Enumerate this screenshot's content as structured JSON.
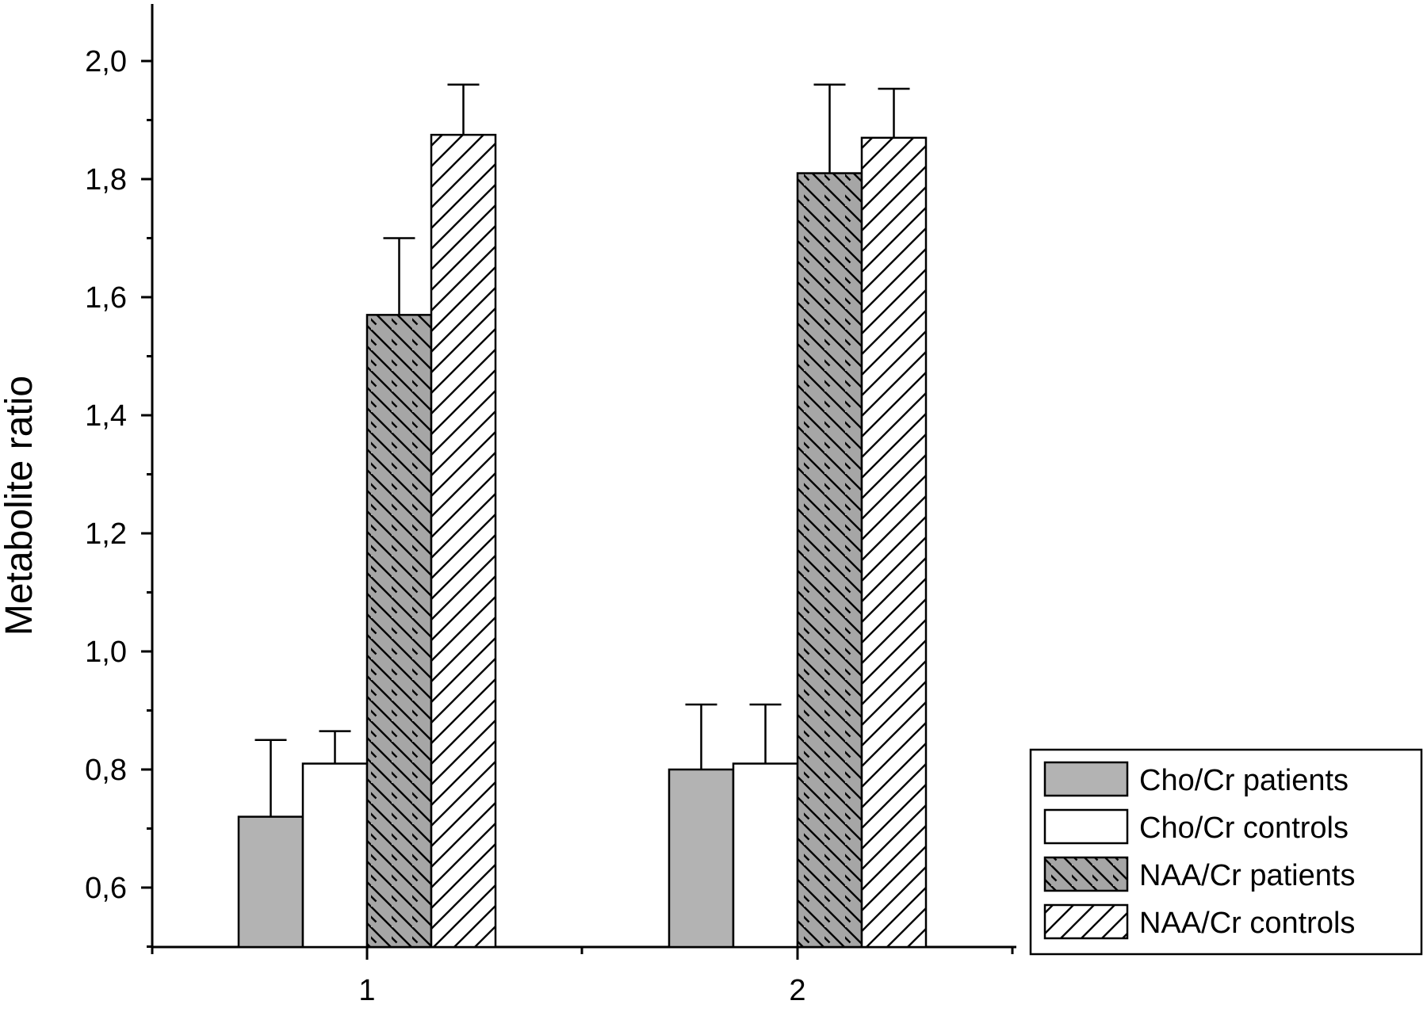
{
  "chart_data": {
    "type": "bar",
    "title": "",
    "xlabel": "",
    "ylabel": "Metabolite ratio",
    "categories": [
      "1",
      "2"
    ],
    "ylim": [
      0.5,
      2.1
    ],
    "yticks": [
      0.6,
      0.8,
      1.0,
      1.2,
      1.4,
      1.6,
      1.8,
      2.0
    ],
    "ytick_labels": [
      "0,6",
      "0,8",
      "1,0",
      "1,2",
      "1,4",
      "1,6",
      "1,8",
      "2,0"
    ],
    "grid": false,
    "legend_position": "bottom-right",
    "series": [
      {
        "name": "Cho/Cr patients",
        "fill": "solid-gray",
        "color": "#b3b3b3",
        "values": [
          0.72,
          0.8
        ],
        "errors": [
          0.13,
          0.11
        ]
      },
      {
        "name": "Cho/Cr controls",
        "fill": "white",
        "color": "#ffffff",
        "values": [
          0.81,
          0.81
        ],
        "errors": [
          0.055,
          0.1
        ]
      },
      {
        "name": "NAA/Cr patients",
        "fill": "gray-back-diagonal-hatch",
        "color": "#a6a6a6",
        "values": [
          1.57,
          1.81
        ],
        "errors": [
          0.13,
          0.15
        ]
      },
      {
        "name": "NAA/Cr controls",
        "fill": "white-forward-diagonal-hatch",
        "color": "#ffffff",
        "values": [
          1.875,
          1.87
        ],
        "errors": [
          0.085,
          0.083
        ]
      }
    ]
  }
}
